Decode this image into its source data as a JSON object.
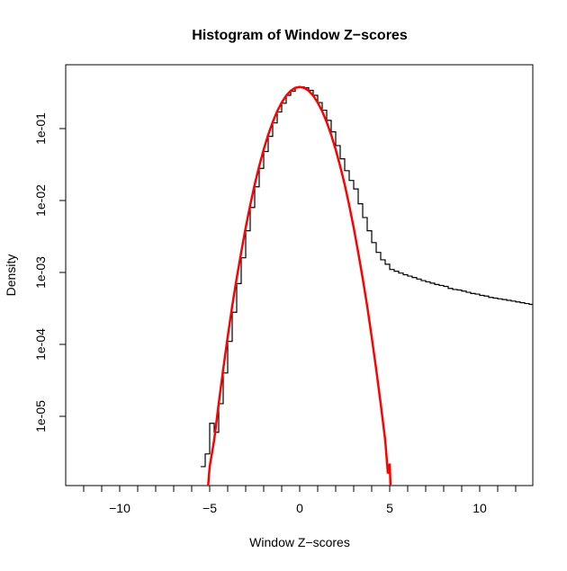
{
  "chart_data": {
    "type": "histogram-log",
    "title": "Histogram of Window Z−scores",
    "xlabel": "Window Z−scores",
    "ylabel": "Density",
    "xlim": [
      -12.95,
      13
    ],
    "ylim_log10": [
      -5.96,
      -0.11
    ],
    "x_ticks": [
      -12,
      -11,
      -10,
      -9,
      -8,
      -7,
      -6,
      -5,
      -4,
      -3,
      -2,
      -1,
      0,
      1,
      2,
      3,
      4,
      5,
      6,
      7,
      8,
      9,
      10,
      11,
      12
    ],
    "x_tick_labels": [
      {
        "v": -10,
        "t": "−10"
      },
      {
        "v": -5,
        "t": "−5"
      },
      {
        "v": 0,
        "t": "0"
      },
      {
        "v": 5,
        "t": "5"
      },
      {
        "v": 10,
        "t": "10"
      }
    ],
    "y_tick_labels": [
      {
        "v": 0.1,
        "t": "1e-01"
      },
      {
        "v": 0.01,
        "t": "1e-02"
      },
      {
        "v": 0.001,
        "t": "1e-03"
      },
      {
        "v": 0.0001,
        "t": "1e-04"
      },
      {
        "v": 1e-05,
        "t": "1e-05"
      }
    ],
    "histogram": {
      "color": "#000000",
      "x_start": -5.5,
      "bin_width": 0.25,
      "density": [
        2e-06,
        3e-06,
        8e-06,
        6e-06,
        1.5e-05,
        4e-05,
        0.00011,
        0.00028,
        0.0007,
        0.0016,
        0.0038,
        0.008,
        0.0155,
        0.028,
        0.048,
        0.078,
        0.12,
        0.17,
        0.225,
        0.29,
        0.33,
        0.37,
        0.38,
        0.37,
        0.34,
        0.29,
        0.23,
        0.18,
        0.13,
        0.09,
        0.058,
        0.038,
        0.026,
        0.019,
        0.0145,
        0.009,
        0.0058,
        0.0038,
        0.0026,
        0.0019,
        0.0015,
        0.0013,
        0.0011,
        0.00104,
        0.00098,
        0.00093,
        0.00089,
        0.00085,
        0.00081,
        0.00077,
        0.00074,
        0.00071,
        0.00068,
        0.00066,
        0.00064,
        0.0006,
        0.00058,
        0.00057,
        0.00055,
        0.00053,
        0.00051,
        0.0005,
        0.00048,
        0.00047,
        0.00045,
        0.00044,
        0.00043,
        0.00042,
        0.00041,
        0.0004,
        0.00039,
        0.00038,
        0.00037,
        0.00036,
        0.00035
      ]
    },
    "fit_curve": {
      "color": "#ff0000",
      "x": [
        -5.1,
        -5,
        -4.75,
        -4.5,
        -4.25,
        -4,
        -3.75,
        -3.5,
        -3.25,
        -3,
        -2.75,
        -2.5,
        -2.25,
        -2,
        -1.75,
        -1.5,
        -1.25,
        -1,
        -0.75,
        -0.5,
        -0.25,
        0,
        0.25,
        0.5,
        0.75,
        1,
        1.25,
        1.5,
        1.75,
        2,
        2.25,
        2.5,
        2.75,
        3,
        3.25,
        3.5,
        3.75,
        4,
        4.25,
        4.5,
        4.75,
        4.9,
        5,
        5.05
      ],
      "y": [
        1e-06,
        2e-06,
        4.7e-06,
        1.5e-05,
        4.5e-05,
        0.000127,
        0.00034,
        0.00083,
        0.0019,
        0.0042,
        0.0086,
        0.0167,
        0.03,
        0.051,
        0.082,
        0.123,
        0.174,
        0.23,
        0.287,
        0.335,
        0.368,
        0.38,
        0.368,
        0.335,
        0.287,
        0.23,
        0.174,
        0.123,
        0.082,
        0.051,
        0.03,
        0.0167,
        0.0086,
        0.0042,
        0.0019,
        0.00083,
        0.00034,
        0.000127,
        4.5e-05,
        1.5e-05,
        4.7e-06,
        1.6e-06,
        2.2e-06,
        1e-06
      ]
    }
  }
}
